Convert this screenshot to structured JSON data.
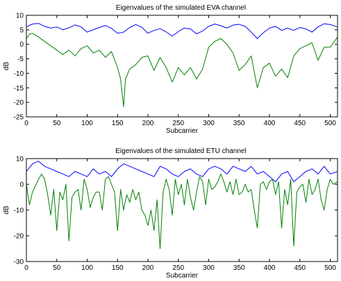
{
  "chart_data": [
    {
      "type": "line",
      "title": "Eigenvalues of the simulated EVA channel",
      "xlabel": "Subcarrier",
      "ylabel": "dB",
      "xlim": [
        0,
        512
      ],
      "ylim": [
        -25,
        10
      ],
      "xticks": [
        0,
        50,
        100,
        150,
        200,
        250,
        300,
        350,
        400,
        450,
        500
      ],
      "yticks": [
        -25,
        -20,
        -15,
        -10,
        -5,
        0,
        5,
        10
      ],
      "grid": false,
      "series": [
        {
          "color": "#0000ff",
          "x": [
            0,
            10,
            20,
            30,
            40,
            50,
            60,
            70,
            80,
            90,
            100,
            110,
            120,
            130,
            140,
            150,
            160,
            170,
            180,
            190,
            200,
            210,
            220,
            230,
            240,
            250,
            260,
            270,
            280,
            290,
            300,
            310,
            320,
            330,
            340,
            350,
            360,
            370,
            380,
            390,
            400,
            410,
            420,
            430,
            440,
            450,
            460,
            470,
            480,
            490,
            500,
            512
          ],
          "y": [
            6.0,
            7.0,
            7.2,
            6.2,
            5.6,
            6.0,
            5.0,
            5.7,
            6.7,
            6.0,
            4.2,
            5.0,
            5.8,
            6.5,
            5.5,
            3.8,
            4.2,
            5.8,
            6.8,
            5.9,
            3.8,
            4.8,
            5.4,
            4.3,
            2.8,
            4.4,
            5.6,
            5.3,
            3.6,
            4.6,
            6.2,
            7.0,
            6.4,
            5.6,
            6.6,
            6.9,
            6.2,
            4.2,
            2.0,
            4.0,
            5.6,
            6.2,
            4.8,
            5.6,
            4.8,
            5.8,
            5.3,
            4.2,
            6.0,
            7.1,
            6.8,
            6.0
          ]
        },
        {
          "color": "#008000",
          "x": [
            0,
            5,
            10,
            20,
            30,
            40,
            50,
            60,
            70,
            80,
            90,
            100,
            110,
            120,
            130,
            140,
            150,
            155,
            160,
            163,
            170,
            180,
            190,
            200,
            210,
            220,
            230,
            240,
            250,
            260,
            270,
            280,
            290,
            300,
            310,
            320,
            330,
            340,
            350,
            360,
            370,
            380,
            390,
            400,
            410,
            420,
            430,
            440,
            450,
            460,
            470,
            480,
            490,
            500,
            512
          ],
          "y": [
            2.0,
            3.5,
            3.8,
            2.5,
            1.0,
            -0.5,
            -2.0,
            -3.5,
            -2.0,
            -4.0,
            -1.5,
            -0.5,
            -3.0,
            -2.0,
            -4.5,
            -2.5,
            -8.0,
            -12.0,
            -21.5,
            -12.0,
            -8.5,
            -7.0,
            -4.5,
            -4.0,
            -9.0,
            -4.5,
            -8.0,
            -13.0,
            -8.0,
            -10.5,
            -8.0,
            -12.0,
            -8.5,
            -1.0,
            1.0,
            2.0,
            0.0,
            -3.0,
            -9.0,
            -7.0,
            -4.0,
            -15.0,
            -8.0,
            -6.5,
            -11.0,
            -8.5,
            -11.5,
            -4.0,
            -1.5,
            -0.5,
            0.5,
            -5.5,
            -1.0,
            -1.0,
            2.5
          ]
        }
      ]
    },
    {
      "type": "line",
      "title": "Eigenvalues of the simulated ETU channel",
      "xlabel": "Subcarrier",
      "ylabel": "dB",
      "xlim": [
        0,
        512
      ],
      "ylim": [
        -30,
        10
      ],
      "xticks": [
        0,
        50,
        100,
        150,
        200,
        250,
        300,
        350,
        400,
        450,
        500
      ],
      "yticks": [
        -30,
        -20,
        -10,
        0,
        10
      ],
      "grid": false,
      "series": [
        {
          "color": "#0000ff",
          "x": [
            0,
            10,
            20,
            30,
            40,
            50,
            60,
            70,
            80,
            90,
            100,
            110,
            120,
            130,
            140,
            150,
            160,
            170,
            180,
            190,
            200,
            210,
            220,
            230,
            240,
            250,
            260,
            270,
            280,
            290,
            300,
            310,
            320,
            330,
            340,
            350,
            360,
            370,
            380,
            390,
            400,
            410,
            420,
            430,
            440,
            450,
            460,
            470,
            480,
            490,
            500,
            512
          ],
          "y": [
            5,
            8,
            9,
            7,
            6,
            5,
            4,
            3,
            5,
            4,
            3,
            6,
            4,
            5,
            3,
            6,
            8,
            7,
            6,
            5,
            4,
            3,
            7,
            6,
            4,
            3,
            5,
            6,
            4,
            3,
            6,
            7,
            6,
            4,
            7,
            6,
            5,
            7,
            4,
            5,
            3,
            1,
            4,
            5,
            1,
            3,
            5,
            6,
            4,
            7,
            4,
            5
          ]
        },
        {
          "color": "#008000",
          "x": [
            0,
            5,
            10,
            20,
            25,
            30,
            35,
            40,
            45,
            50,
            55,
            60,
            65,
            70,
            75,
            80,
            85,
            90,
            95,
            100,
            105,
            110,
            115,
            120,
            125,
            130,
            135,
            140,
            145,
            150,
            155,
            160,
            165,
            170,
            175,
            180,
            185,
            190,
            195,
            200,
            205,
            210,
            215,
            220,
            225,
            230,
            235,
            240,
            245,
            250,
            255,
            260,
            265,
            270,
            275,
            280,
            285,
            290,
            295,
            300,
            305,
            310,
            315,
            320,
            325,
            330,
            335,
            340,
            345,
            350,
            355,
            360,
            365,
            370,
            375,
            380,
            385,
            390,
            395,
            400,
            405,
            410,
            415,
            420,
            425,
            430,
            435,
            440,
            445,
            450,
            455,
            460,
            465,
            470,
            475,
            480,
            485,
            490,
            495,
            500,
            505,
            512
          ],
          "y": [
            0,
            -8,
            -3,
            2,
            4,
            2,
            -4,
            -12,
            -2,
            -18,
            -3,
            -6,
            0,
            -22,
            -5,
            -3,
            -2,
            -10,
            2,
            -2,
            -9,
            -5,
            -3,
            -3,
            -10,
            2,
            3,
            0,
            -3,
            -18,
            -2,
            -10,
            -4,
            -7,
            -2,
            -6,
            -3,
            -10,
            -12,
            -16,
            -10,
            -18,
            -6,
            -25,
            -3,
            2,
            -2,
            -12,
            2,
            -4,
            0,
            -8,
            2,
            -5,
            -10,
            -3,
            3,
            1,
            -8,
            2,
            -2,
            -1,
            1,
            4,
            1,
            -3,
            1,
            -4,
            2,
            -4,
            -3,
            0,
            -3,
            -2,
            -10,
            -17,
            0,
            1,
            -2,
            1,
            2,
            -4,
            1,
            -17,
            -2,
            -8,
            2,
            -24,
            -3,
            -1,
            0,
            -7,
            2,
            -4,
            -2,
            2,
            -6,
            -10,
            -2,
            2,
            0,
            1
          ]
        }
      ]
    }
  ]
}
